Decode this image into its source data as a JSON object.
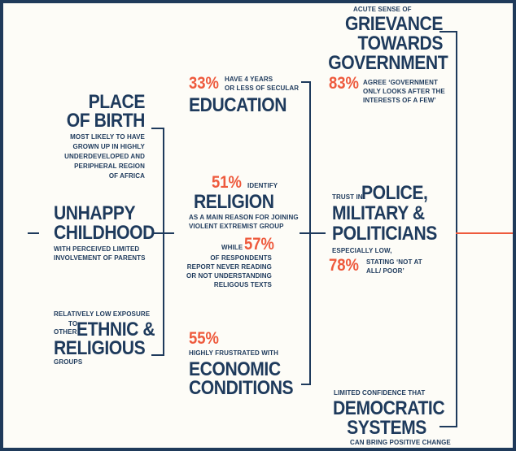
{
  "left_column": {
    "place_of_birth": {
      "heading_lines": [
        "PLACE",
        "OF BIRTH"
      ],
      "text_lines": [
        "MOST LIKELY TO HAVE",
        "GROWN UP IN HIGHLY",
        "UNDERDEVELOPED AND",
        "PERIPHERAL REGION",
        "OF AFRICA"
      ]
    },
    "childhood": {
      "heading_lines": [
        "UNHAPPY",
        "CHILDHOOD"
      ],
      "text_lines": [
        "WITH PERCEIVED LIMITED",
        "INVOLVEMENT OF PARENTS"
      ]
    },
    "ethnic": {
      "intro": "RELATIVELY LOW EXPOSURE",
      "to": "TO",
      "other": "OTHER",
      "heading_lines": [
        "ETHNIC &",
        "RELIGIOUS"
      ],
      "tail": "GROUPS"
    }
  },
  "middle_column": {
    "education": {
      "pct": "33%",
      "text_lines": [
        "HAVE 4 YEARS",
        "OR LESS OF SECULAR"
      ],
      "heading": "EDUCATION"
    },
    "religion": {
      "pct": "51%",
      "pct_text": "IDENTIFY",
      "heading": "RELIGION",
      "text_lines": [
        "AS A MAIN REASON FOR JOINING",
        "VIOLENT EXTREMIST GROUP"
      ],
      "while": "WHILE",
      "pct2": "57%",
      "text2_lines": [
        "OF RESPONDENTS",
        "REPORT NEVER READING",
        "OR NOT UNDERSTANDING",
        "RELIGOUS TEXTS"
      ]
    },
    "economic": {
      "pct": "55%",
      "text": "HIGHLY FRUSTRATED WITH",
      "heading_lines": [
        "ECONOMIC",
        "CONDITIONS"
      ]
    }
  },
  "right_column": {
    "grievance": {
      "intro": "ACUTE SENSE OF",
      "heading_lines": [
        "GRIEVANCE",
        "TOWARDS",
        "GOVERNMENT"
      ],
      "pct": "83%",
      "text_lines": [
        "AGREE ‘GOVERNMENT",
        "ONLY LOOKS AFTER THE",
        "INTERESTS OF A FEW’"
      ]
    },
    "police": {
      "trust_in": "TRUST IN",
      "heading_lines": [
        "POLICE,",
        "MILITARY &",
        "POLITICIANS"
      ],
      "especially": "ESPECIALLY LOW,",
      "pct": "78%",
      "text_lines": [
        "STATING ‘NOT AT",
        "ALL/ POOR’"
      ]
    },
    "democratic": {
      "intro": "LIMITED CONFIDENCE THAT",
      "heading_lines": [
        "DEMOCRATIC",
        "SYSTEMS"
      ],
      "tail": "CAN BRING POSITIVE CHANGE"
    }
  },
  "colors": {
    "navy": "#1e3a5c",
    "accent": "#ee5a3d",
    "background": "#fdfcf7",
    "frame": "#1f3a5a"
  }
}
